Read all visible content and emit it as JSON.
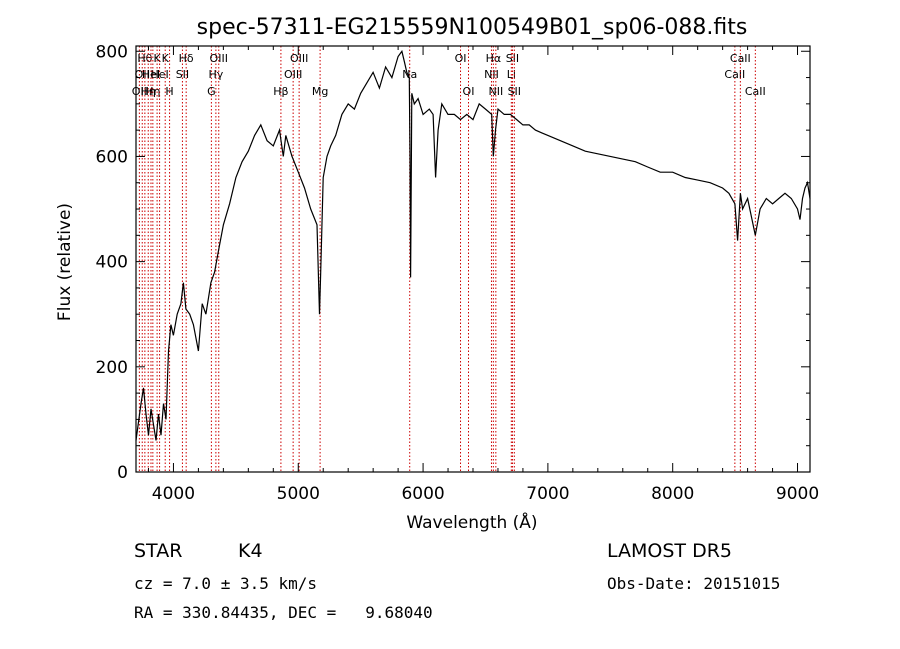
{
  "chart_data": {
    "type": "line",
    "title": "spec-57311-EG215559N100549B01_sp06-088.fits",
    "xlabel": "Wavelength (Å)",
    "ylabel": "Flux (relative)",
    "xlim": [
      3700,
      9100
    ],
    "ylim": [
      0,
      810
    ],
    "xticks": [
      4000,
      5000,
      6000,
      7000,
      8000,
      9000
    ],
    "yticks": [
      0,
      200,
      400,
      600,
      800
    ],
    "grid": false,
    "line_color": "#000000",
    "marker_color": "#cc0000",
    "series": [
      {
        "x": [
          3700,
          3740,
          3760,
          3780,
          3800,
          3820,
          3840,
          3860,
          3880,
          3900,
          3920,
          3940,
          3960,
          3980,
          4000,
          4030,
          4060,
          4080,
          4100,
          4130,
          4160,
          4200,
          4230,
          4260,
          4300,
          4330,
          4360,
          4400,
          4450,
          4500,
          4550,
          4600,
          4650,
          4700,
          4750,
          4800,
          4850,
          4880,
          4900,
          4950,
          5000,
          5050,
          5100,
          5150,
          5170,
          5180,
          5200,
          5230,
          5260,
          5300,
          5350,
          5400,
          5450,
          5500,
          5550,
          5600,
          5650,
          5700,
          5750,
          5800,
          5830,
          5850,
          5870,
          5890,
          5895,
          5900,
          5910,
          5930,
          5960,
          6000,
          6050,
          6080,
          6100,
          6120,
          6150,
          6200,
          6250,
          6300,
          6350,
          6400,
          6450,
          6500,
          6550,
          6563,
          6580,
          6600,
          6650,
          6700,
          6750,
          6800,
          6850,
          6900,
          6950,
          7000,
          7100,
          7200,
          7300,
          7400,
          7500,
          7600,
          7700,
          7800,
          7900,
          8000,
          8100,
          8200,
          8300,
          8400,
          8450,
          8498,
          8520,
          8542,
          8560,
          8600,
          8662,
          8700,
          8750,
          8800,
          8850,
          8900,
          8950,
          9000,
          9020,
          9040,
          9060,
          9080,
          9100
        ],
        "y": [
          60,
          130,
          160,
          110,
          70,
          120,
          90,
          60,
          110,
          70,
          130,
          100,
          230,
          280,
          260,
          300,
          320,
          360,
          310,
          300,
          280,
          230,
          320,
          300,
          360,
          380,
          420,
          470,
          510,
          560,
          590,
          610,
          640,
          660,
          630,
          620,
          650,
          600,
          640,
          600,
          570,
          540,
          500,
          470,
          300,
          380,
          560,
          600,
          620,
          640,
          680,
          700,
          690,
          720,
          740,
          760,
          730,
          770,
          750,
          790,
          800,
          780,
          760,
          750,
          600,
          370,
          720,
          700,
          710,
          680,
          690,
          680,
          560,
          650,
          700,
          680,
          680,
          670,
          680,
          670,
          700,
          690,
          680,
          600,
          650,
          690,
          680,
          680,
          670,
          660,
          660,
          650,
          645,
          640,
          630,
          620,
          610,
          605,
          600,
          595,
          590,
          580,
          570,
          570,
          560,
          555,
          550,
          540,
          530,
          510,
          440,
          530,
          500,
          520,
          450,
          500,
          520,
          510,
          520,
          530,
          520,
          500,
          480,
          520,
          540,
          550,
          520
        ]
      }
    ],
    "line_markers": [
      {
        "x": 3727,
        "label": "OII",
        "row": 3
      },
      {
        "x": 3750,
        "label": "OII",
        "row": 2
      },
      {
        "x": 3771,
        "label": "Hθ",
        "row": 1
      },
      {
        "x": 3798,
        "label": "Hη",
        "row": 3
      },
      {
        "x": 3820,
        "label": "HeI",
        "row": 2
      },
      {
        "x": 3835,
        "label": "Hη",
        "row": 3
      },
      {
        "x": 3869,
        "label": "K",
        "row": 1
      },
      {
        "x": 3889,
        "label": "HeI",
        "row": 2
      },
      {
        "x": 3934,
        "label": "K",
        "row": 1
      },
      {
        "x": 3969,
        "label": "H",
        "row": 3
      },
      {
        "x": 4072,
        "label": "SII",
        "row": 2
      },
      {
        "x": 4102,
        "label": "Hδ",
        "row": 1
      },
      {
        "x": 4304,
        "label": "G",
        "row": 3
      },
      {
        "x": 4340,
        "label": "Hγ",
        "row": 2
      },
      {
        "x": 4363,
        "label": "OIII",
        "row": 1
      },
      {
        "x": 4861,
        "label": "Hβ",
        "row": 3
      },
      {
        "x": 4959,
        "label": "OIII",
        "row": 2
      },
      {
        "x": 5007,
        "label": "OIII",
        "row": 1
      },
      {
        "x": 5175,
        "label": "Mg",
        "row": 3
      },
      {
        "x": 5893,
        "label": "Na",
        "row": 2
      },
      {
        "x": 6300,
        "label": "OI",
        "row": 1
      },
      {
        "x": 6364,
        "label": "OI",
        "row": 3
      },
      {
        "x": 6548,
        "label": "NII",
        "row": 2
      },
      {
        "x": 6563,
        "label": "Hα",
        "row": 1
      },
      {
        "x": 6583,
        "label": "NII",
        "row": 3
      },
      {
        "x": 6707,
        "label": "Li",
        "row": 2
      },
      {
        "x": 6716,
        "label": "SII",
        "row": 1
      },
      {
        "x": 6731,
        "label": "SII",
        "row": 3
      },
      {
        "x": 8498,
        "label": "CaII",
        "row": 2
      },
      {
        "x": 8542,
        "label": "CaII",
        "row": 1
      },
      {
        "x": 8662,
        "label": "CaII",
        "row": 3
      }
    ]
  },
  "info": {
    "object_class": "STAR",
    "subclass": "K4",
    "survey": "LAMOST DR5",
    "velocity": "cz = 7.0 ± 3.5 km/s",
    "obs_date": "Obs-Date: 20151015",
    "coords": "RA = 330.84435, DEC =   9.68040"
  }
}
